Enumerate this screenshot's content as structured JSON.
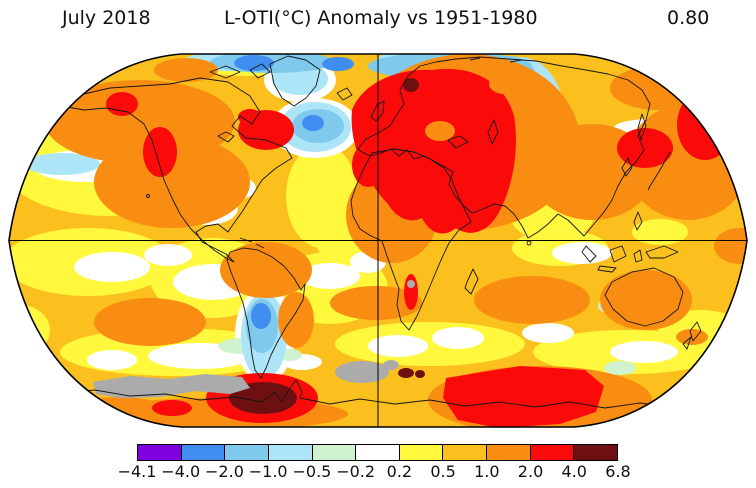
{
  "header": {
    "date_label": "July 2018",
    "title": "L-OTI(°C) Anomaly vs 1951-1980",
    "mean_value": "0.80"
  },
  "colorbar": {
    "ticks": [
      "−4.1",
      "−4.0",
      "−2.0",
      "−1.0",
      "−0.5",
      "−0.2",
      "0.2",
      "0.5",
      "1.0",
      "2.0",
      "4.0",
      "6.8"
    ],
    "colors": [
      "#7D00DE",
      "#3F8EF0",
      "#7FC9EC",
      "#ADE5F8",
      "#CFF2CF",
      "#FFFFFF",
      "#FFF83C",
      "#FBC01D",
      "#F98D12",
      "#FB0A0A",
      "#6E1012"
    ],
    "missing_data_color": "#ABABAB"
  },
  "chart_data": {
    "type": "heatmap",
    "title": "L-OTI(°C) Anomaly vs 1951-1980",
    "period": "July 2018",
    "global_mean": 0.8,
    "units": "°C",
    "scale_ticks": [
      -4.1,
      -4.0,
      -2.0,
      -1.0,
      -0.5,
      -0.2,
      0.2,
      0.5,
      1.0,
      2.0,
      4.0,
      6.8
    ],
    "palette": [
      "#7D00DE",
      "#3F8EF0",
      "#7FC9EC",
      "#ADE5F8",
      "#CFF2CF",
      "#FFFFFF",
      "#FFF83C",
      "#FBC01D",
      "#F98D12",
      "#FB0A0A",
      "#6E1012"
    ],
    "legend_position": "bottom"
  }
}
